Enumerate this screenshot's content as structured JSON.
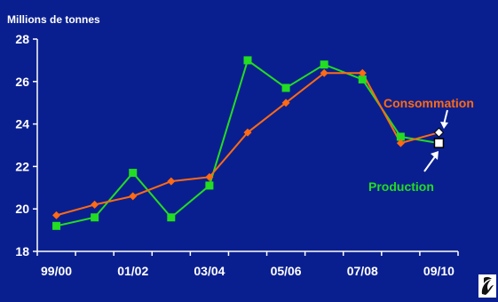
{
  "chart_data": {
    "type": "line",
    "ylabel": "Millions de tonnes",
    "ylim": [
      18,
      28
    ],
    "yticks": [
      18,
      20,
      22,
      24,
      26,
      28
    ],
    "x_tick_labels": [
      "99/00",
      "01/02",
      "03/04",
      "05/06",
      "07/08",
      "09/10"
    ],
    "grid": false,
    "series": [
      {
        "name": "Consommation",
        "color": "#ff6a13",
        "marker": "diamond",
        "values": [
          19.7,
          20.2,
          20.6,
          21.3,
          21.5,
          23.6,
          25.0,
          26.4,
          26.4,
          23.1,
          23.6
        ]
      },
      {
        "name": "Production",
        "color": "#22dd22",
        "marker": "square",
        "values": [
          19.2,
          19.6,
          21.7,
          19.6,
          21.1,
          27.0,
          25.7,
          26.8,
          26.1,
          23.4,
          23.1
        ]
      }
    ]
  },
  "logo_icon": "swirl-logo-icon"
}
